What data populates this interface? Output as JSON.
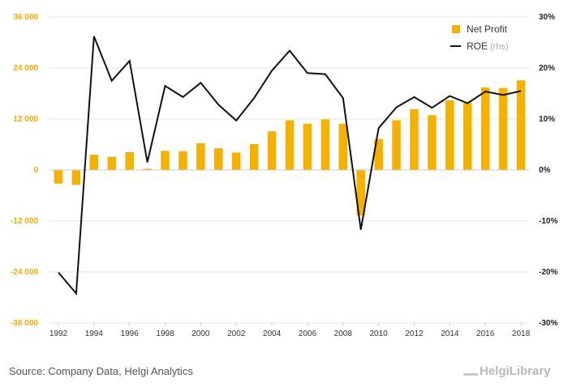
{
  "chart_data": {
    "type": "bar+line",
    "title": "",
    "xlabel": "",
    "ylabel": "",
    "x": [
      1992,
      1993,
      1994,
      1995,
      1996,
      1997,
      1998,
      1999,
      2000,
      2001,
      2002,
      2003,
      2004,
      2005,
      2006,
      2007,
      2008,
      2009,
      2010,
      2011,
      2012,
      2013,
      2014,
      2015,
      2016,
      2017,
      2018
    ],
    "x_tick_labels": [
      "1992",
      "1994",
      "1996",
      "1998",
      "2000",
      "2002",
      "2004",
      "2006",
      "2008",
      "2010",
      "2012",
      "2014",
      "2016",
      "2018"
    ],
    "y_left": {
      "ylim": [
        -36000,
        36000
      ],
      "ticks": [
        36000,
        24000,
        12000,
        0,
        -12000,
        -24000,
        -36000
      ],
      "tick_labels": [
        "36 000",
        "24 000",
        "12 000",
        "0",
        "-12 000",
        "-24 000",
        "-36 000"
      ]
    },
    "y_right": {
      "ylim": [
        -30,
        30
      ],
      "ticks": [
        30,
        20,
        10,
        0,
        -10,
        -20,
        -30
      ],
      "tick_labels": [
        "30%",
        "20%",
        "10%",
        "0%",
        "-10%",
        "-20%",
        "-30%"
      ]
    },
    "series": [
      {
        "name": "Net Profit",
        "type": "bar",
        "axis": "left",
        "color": "#f5b100",
        "values": [
          -3200,
          -3500,
          3600,
          3100,
          4200,
          300,
          4500,
          4400,
          6300,
          5100,
          4100,
          6100,
          9100,
          11700,
          10900,
          11900,
          10900,
          -10700,
          7300,
          11700,
          14300,
          12900,
          16400,
          15800,
          19400,
          19300,
          21100
        ]
      },
      {
        "name": "ROE",
        "type": "line",
        "axis": "right",
        "color": "#111111",
        "values": [
          -20.1,
          -24.2,
          26.2,
          17.5,
          21.4,
          1.5,
          16.5,
          14.3,
          17.1,
          12.8,
          9.7,
          14.1,
          19.5,
          23.4,
          19.0,
          18.8,
          14.1,
          -11.7,
          8.2,
          12.3,
          14.3,
          12.2,
          14.5,
          13.1,
          15.4,
          14.7,
          15.5
        ]
      }
    ],
    "legend": {
      "position": "top-right",
      "items": [
        {
          "label": "Net Profit"
        },
        {
          "label": "ROE",
          "suffix": "(rhs)"
        }
      ]
    },
    "grid": true
  },
  "footer": {
    "source": "Source: Company Data, Helgi Analytics",
    "brand": "HelgiLibrary"
  }
}
